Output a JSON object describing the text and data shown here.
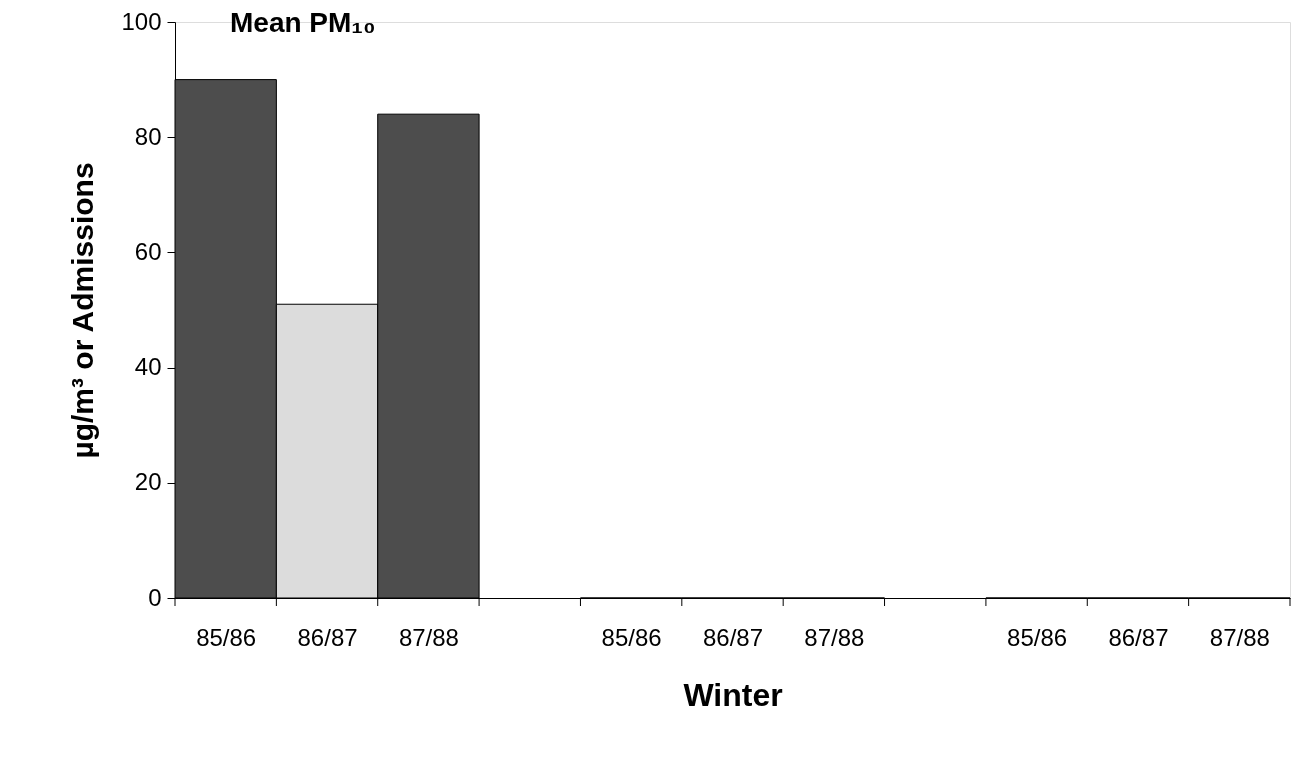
{
  "chart_data": {
    "type": "bar",
    "title": "Mean PM₁₀",
    "xlabel": "Winter",
    "ylabel": "µg/m³ or Admissions",
    "categories": [
      "85/86",
      "86/87",
      "87/88",
      null,
      "85/86",
      "86/87",
      "87/88",
      null,
      "85/86",
      "86/87",
      "87/88"
    ],
    "values": [
      90,
      51,
      84,
      null,
      0,
      0,
      0,
      null,
      0,
      0,
      0
    ],
    "colors": [
      "#4d4d4d",
      "#dcdcdc",
      "#4d4d4d",
      null,
      "#4d4d4d",
      "#dcdcdc",
      "#4d4d4d",
      null,
      "#4d4d4d",
      "#dcdcdc",
      "#4d4d4d"
    ],
    "ylim": [
      0,
      100
    ],
    "yticks": [
      0,
      20,
      40,
      60,
      80,
      100
    ],
    "grid": false,
    "legend": false
  }
}
